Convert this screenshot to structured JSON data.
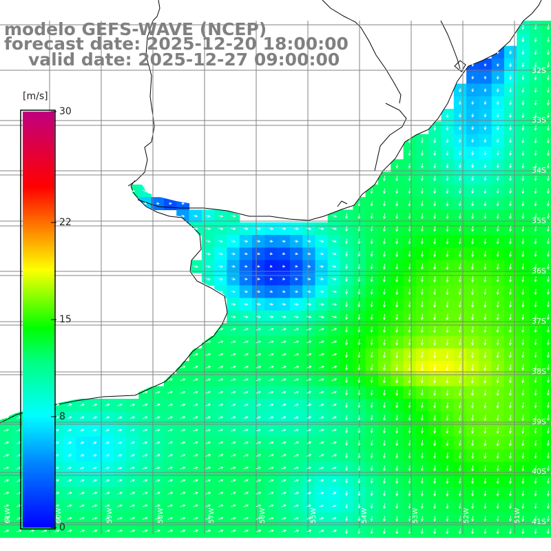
{
  "title": {
    "line1": "modelo GEFS-WAVE (NCEP)",
    "line2": "forecast date: 2025-12-20 18:00:00",
    "line3": "valid date: 2025-12-27 09:00:00"
  },
  "colorbar": {
    "unit": "[m/s]",
    "ticks": [
      "30",
      "22",
      "15",
      "8",
      "0"
    ],
    "tick_values": [
      30,
      22,
      15,
      8,
      0
    ],
    "min": 0,
    "max": 30,
    "colors": [
      "#0000ff",
      "#00aaff",
      "#00ffff",
      "#00ff00",
      "#ffff00",
      "#ff8000",
      "#ff0000",
      "#c0007f"
    ]
  },
  "map": {
    "lat_labels": [
      "32S",
      "33S",
      "34S",
      "35S",
      "36S",
      "37S",
      "38S",
      "39S",
      "40S",
      "41S"
    ],
    "lon_labels": [
      "61W",
      "60W",
      "59W",
      "58W",
      "57W",
      "56W",
      "55W",
      "54W",
      "53W",
      "52W",
      "51W"
    ],
    "lat_range": [
      -41,
      -31
    ],
    "lon_range": [
      -61,
      -50.5
    ],
    "wind_direction": "onshore/southward arrows (white vectors)",
    "land_color": "#ffffff",
    "grid_color": "#808080"
  }
}
